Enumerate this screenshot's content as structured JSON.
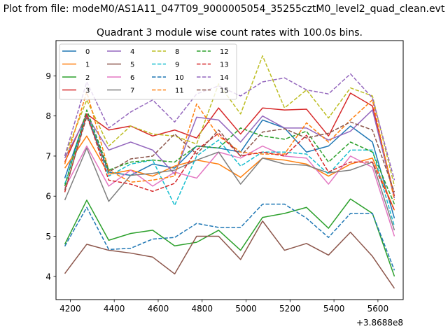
{
  "chart_data": {
    "type": "line",
    "suptitle": "Plot from file: modeM0/AS1A11_047T09_9000005054_35255cztM0_level2_quad_clean.evt",
    "title": "Quadrant 3 module wise count rates with 100.0s bins.",
    "xlabel": "",
    "ylabel": "",
    "offset_label": "+3.8688e8",
    "xlim": [
      4135,
      5715
    ],
    "ylim": [
      3.42,
      9.88
    ],
    "xticks": [
      4200,
      4400,
      4600,
      4800,
      5000,
      5200,
      5400,
      5600
    ],
    "yticks": [
      4,
      5,
      6,
      7,
      8,
      9
    ],
    "x": [
      4175,
      4275,
      4375,
      4475,
      4575,
      4675,
      4775,
      4875,
      4975,
      5075,
      5175,
      5275,
      5375,
      5475,
      5575,
      5675
    ],
    "legend_location": "upper-left",
    "legend_columns": 4,
    "series": [
      {
        "name": "0",
        "color": "#1f77b4",
        "dash": "solid",
        "values": [
          6.45,
          8.05,
          6.6,
          6.52,
          6.8,
          6.7,
          7.25,
          7.2,
          7.1,
          7.9,
          7.7,
          7.1,
          7.25,
          7.75,
          7.35,
          5.45
        ]
      },
      {
        "name": "1",
        "color": "#ff7f0e",
        "dash": "solid",
        "values": [
          6.7,
          7.5,
          6.55,
          6.65,
          6.5,
          6.75,
          6.9,
          6.8,
          6.47,
          6.95,
          6.9,
          6.8,
          6.5,
          6.8,
          6.95,
          5.65
        ]
      },
      {
        "name": "2",
        "color": "#2ca02c",
        "dash": "solid",
        "values": [
          4.8,
          5.9,
          4.9,
          5.07,
          5.15,
          4.76,
          4.85,
          5.15,
          4.65,
          5.47,
          5.57,
          5.72,
          5.2,
          5.93,
          5.57,
          4.0
        ]
      },
      {
        "name": "3",
        "color": "#d62728",
        "dash": "solid",
        "values": [
          6.85,
          8.05,
          7.65,
          7.75,
          7.5,
          7.65,
          7.45,
          8.2,
          7.55,
          8.2,
          8.15,
          8.17,
          7.5,
          8.57,
          8.25,
          6.0
        ]
      },
      {
        "name": "4",
        "color": "#9467bd",
        "dash": "solid",
        "values": [
          6.95,
          8.0,
          7.15,
          7.35,
          7.15,
          6.55,
          7.97,
          7.9,
          7.35,
          8.0,
          7.7,
          7.7,
          7.4,
          7.62,
          8.15,
          5.95
        ]
      },
      {
        "name": "5",
        "color": "#8c564b",
        "dash": "solid",
        "values": [
          4.07,
          4.8,
          4.65,
          4.58,
          4.48,
          4.06,
          5.0,
          5.0,
          4.42,
          5.38,
          4.65,
          4.82,
          4.53,
          5.1,
          4.5,
          3.7
        ]
      },
      {
        "name": "6",
        "color": "#e377c2",
        "dash": "solid",
        "values": [
          6.2,
          7.25,
          6.25,
          6.65,
          6.25,
          6.6,
          6.45,
          7.1,
          6.95,
          7.25,
          7.0,
          6.95,
          6.3,
          7.0,
          6.72,
          5.0
        ]
      },
      {
        "name": "7",
        "color": "#7f7f7f",
        "dash": "solid",
        "values": [
          5.9,
          7.2,
          5.87,
          6.52,
          6.57,
          6.65,
          6.9,
          7.1,
          6.3,
          6.95,
          6.8,
          6.77,
          6.58,
          6.65,
          6.85,
          5.15
        ]
      },
      {
        "name": "8",
        "color": "#bcbd22",
        "dash": "dashed",
        "values": [
          7.0,
          8.4,
          7.25,
          7.75,
          7.55,
          7.5,
          7.3,
          8.8,
          8.05,
          9.5,
          8.2,
          8.65,
          7.95,
          8.7,
          8.5,
          6.25
        ]
      },
      {
        "name": "9",
        "color": "#17becf",
        "dash": "dashed",
        "values": [
          6.3,
          8.05,
          6.5,
          6.8,
          6.9,
          5.77,
          7.0,
          7.4,
          6.75,
          7.1,
          7.1,
          7.05,
          6.55,
          7.15,
          7.15,
          5.25
        ]
      },
      {
        "name": "10",
        "color": "#1f77b4",
        "dash": "dashed",
        "values": [
          4.75,
          5.72,
          4.67,
          4.7,
          4.93,
          4.97,
          5.32,
          5.22,
          5.22,
          5.8,
          5.8,
          5.45,
          4.97,
          5.57,
          5.57,
          4.15
        ]
      },
      {
        "name": "11",
        "color": "#ff7f0e",
        "dash": "dashed",
        "values": [
          6.8,
          8.6,
          6.65,
          6.35,
          6.4,
          6.5,
          8.3,
          7.5,
          7.1,
          7.05,
          7.05,
          7.83,
          7.35,
          7.9,
          8.4,
          5.9
        ]
      },
      {
        "name": "12",
        "color": "#2ca02c",
        "dash": "dashed",
        "values": [
          6.25,
          8.15,
          6.65,
          6.85,
          6.9,
          6.85,
          7.25,
          7.2,
          7.7,
          7.5,
          7.42,
          7.62,
          6.85,
          7.35,
          7.1,
          5.8
        ]
      },
      {
        "name": "13",
        "color": "#d62728",
        "dash": "dashed",
        "values": [
          6.1,
          8.05,
          6.4,
          6.3,
          6.12,
          6.32,
          7.15,
          7.57,
          7.0,
          7.1,
          7.0,
          7.52,
          6.6,
          6.85,
          6.85,
          5.65
        ]
      },
      {
        "name": "14",
        "color": "#9467bd",
        "dash": "dashed",
        "values": [
          7.0,
          8.85,
          7.7,
          8.1,
          8.4,
          7.85,
          8.55,
          8.75,
          8.5,
          8.85,
          8.95,
          8.65,
          8.55,
          9.05,
          8.45,
          6.4
        ]
      },
      {
        "name": "15",
        "color": "#8c564b",
        "dash": "dashed",
        "values": [
          6.15,
          7.98,
          6.6,
          6.93,
          7.0,
          7.55,
          7.05,
          7.65,
          7.0,
          7.6,
          7.68,
          7.45,
          7.57,
          7.85,
          7.65,
          6.1
        ]
      }
    ]
  }
}
